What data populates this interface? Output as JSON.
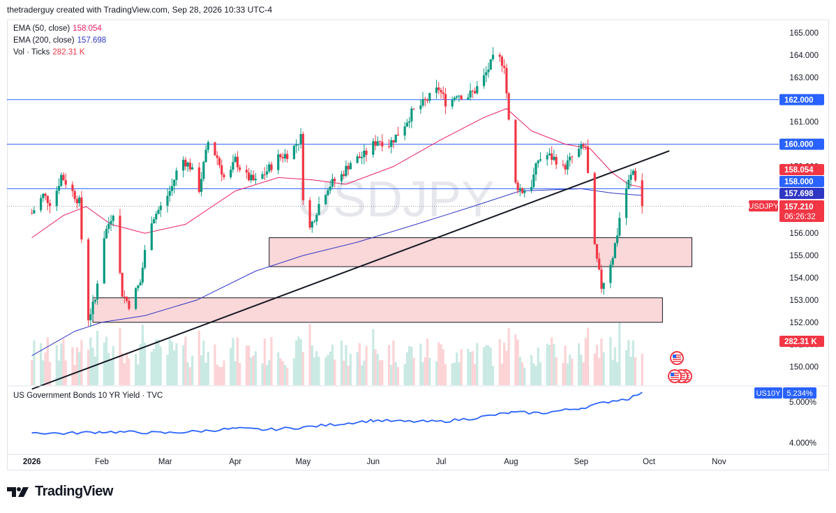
{
  "header": {
    "credit": "thetraderguy created with TradingView.com, Sep 28, 2026 10:33 UTC-4"
  },
  "watermark": "USDJPY",
  "legend": {
    "ema50": {
      "label": "EMA (50, close)",
      "value": "158.054",
      "color": "#e91e63"
    },
    "ema200": {
      "label": "EMA (200, close)",
      "value": "157.698",
      "color": "#2f36c4"
    },
    "vol": {
      "label": "Vol · Ticks",
      "value": "282.31 K",
      "color": "#f23645"
    }
  },
  "sub_legend": {
    "label": "US Government Bonds 10 YR Yield · TVC"
  },
  "footer": {
    "brand": "TradingView"
  },
  "price_labels": {
    "ema50": "158.054",
    "level_158": "158.000",
    "ema200": "157.698",
    "symbol": "USDJPY",
    "last": "157.210",
    "countdown": "06:26:32",
    "level_162": "162.000",
    "level_160": "160.000",
    "volume": "282.31 K",
    "yield_symbol": "US10Y",
    "yield_value": "5.234%"
  },
  "colors": {
    "up": "#089981",
    "down": "#f23645",
    "zone": "#f8c9cc",
    "level": "#2962ff",
    "yield": "#2962ff",
    "ema50": "#e91e63",
    "ema200": "#2f36c4"
  },
  "chart_data": [
    {
      "type": "candlestick",
      "title": "USDJPY",
      "yaxis_ticks": [
        "150.000",
        "151.000",
        "152.000",
        "153.000",
        "154.000",
        "155.000",
        "156.000",
        "157.000",
        "158.000",
        "159.000",
        "160.000",
        "161.000",
        "162.000",
        "163.000",
        "164.000",
        "165.000"
      ],
      "xaxis_ticks": [
        "2026",
        "Feb",
        "Mar",
        "Apr",
        "May",
        "Jun",
        "Jul",
        "Aug",
        "Sep",
        "Oct",
        "Nov"
      ],
      "ylim": [
        149.0,
        165.3
      ],
      "close_path": [
        [
          "2026-01-01",
          156.9
        ],
        [
          "2026-01-06",
          157.7
        ],
        [
          "2026-01-10",
          157.3
        ],
        [
          "2026-01-14",
          158.6
        ],
        [
          "2026-01-18",
          158.0
        ],
        [
          "2026-01-22",
          157.4
        ],
        [
          "2026-01-24",
          154.1
        ],
        [
          "2026-01-26",
          152.2
        ],
        [
          "2026-01-29",
          153.0
        ],
        [
          "2026-02-01",
          155.6
        ],
        [
          "2026-02-06",
          157.0
        ],
        [
          "2026-02-08",
          155.0
        ],
        [
          "2026-02-10",
          153.3
        ],
        [
          "2026-02-13",
          152.8
        ],
        [
          "2026-02-18",
          153.8
        ],
        [
          "2026-02-22",
          156.5
        ],
        [
          "2026-02-28",
          157.3
        ],
        [
          "2026-03-04",
          158.1
        ],
        [
          "2026-03-08",
          159.4
        ],
        [
          "2026-03-12",
          159.0
        ],
        [
          "2026-03-16",
          158.0
        ],
        [
          "2026-03-20",
          160.1
        ],
        [
          "2026-03-24",
          159.4
        ],
        [
          "2026-03-28",
          158.2
        ],
        [
          "2026-04-01",
          159.3
        ],
        [
          "2026-04-05",
          158.6
        ],
        [
          "2026-04-10",
          158.3
        ],
        [
          "2026-04-15",
          158.8
        ],
        [
          "2026-04-20",
          159.4
        ],
        [
          "2026-04-25",
          159.6
        ],
        [
          "2026-04-30",
          160.3
        ],
        [
          "2026-05-01",
          157.7
        ],
        [
          "2026-05-04",
          156.2
        ],
        [
          "2026-05-08",
          157.3
        ],
        [
          "2026-05-12",
          158.1
        ],
        [
          "2026-05-18",
          158.6
        ],
        [
          "2026-05-22",
          159.2
        ],
        [
          "2026-05-28",
          159.5
        ],
        [
          "2026-06-03",
          160.2
        ],
        [
          "2026-06-08",
          160.0
        ],
        [
          "2026-06-13",
          160.6
        ],
        [
          "2026-06-18",
          161.4
        ],
        [
          "2026-06-24",
          161.9
        ],
        [
          "2026-06-30",
          162.5
        ],
        [
          "2026-07-04",
          161.7
        ],
        [
          "2026-07-08",
          162.3
        ],
        [
          "2026-07-12",
          162.1
        ],
        [
          "2026-07-16",
          162.4
        ],
        [
          "2026-07-20",
          163.0
        ],
        [
          "2026-07-24",
          163.8
        ],
        [
          "2026-07-27",
          163.8
        ],
        [
          "2026-07-29",
          163.6
        ],
        [
          "2026-07-31",
          161.0
        ],
        [
          "2026-08-02",
          158.3
        ],
        [
          "2026-08-06",
          157.9
        ],
        [
          "2026-08-10",
          158.2
        ],
        [
          "2026-08-13",
          159.3
        ],
        [
          "2026-08-17",
          159.5
        ],
        [
          "2026-08-21",
          159.3
        ],
        [
          "2026-08-24",
          158.9
        ],
        [
          "2026-08-28",
          159.4
        ],
        [
          "2026-09-01",
          159.8
        ],
        [
          "2026-09-03",
          159.9
        ],
        [
          "2026-09-05",
          157.3
        ],
        [
          "2026-09-07",
          155.3
        ],
        [
          "2026-09-10",
          153.6
        ],
        [
          "2026-09-13",
          154.4
        ],
        [
          "2026-09-15",
          155.0
        ],
        [
          "2026-09-17",
          156.0
        ],
        [
          "2026-09-19",
          157.4
        ],
        [
          "2026-09-22",
          158.3
        ],
        [
          "2026-09-24",
          158.8
        ],
        [
          "2026-09-26",
          158.2
        ],
        [
          "2026-09-28",
          157.21
        ]
      ],
      "ema50": [
        [
          "2026-01-01",
          155.8
        ],
        [
          "2026-01-15",
          156.8
        ],
        [
          "2026-01-25",
          157.2
        ],
        [
          "2026-02-05",
          156.4
        ],
        [
          "2026-02-20",
          156.0
        ],
        [
          "2026-03-10",
          156.4
        ],
        [
          "2026-04-01",
          157.9
        ],
        [
          "2026-04-20",
          158.5
        ],
        [
          "2026-05-05",
          158.4
        ],
        [
          "2026-05-20",
          158.2
        ],
        [
          "2026-06-10",
          159.0
        ],
        [
          "2026-07-01",
          160.2
        ],
        [
          "2026-07-20",
          161.2
        ],
        [
          "2026-07-30",
          161.6
        ],
        [
          "2026-08-10",
          160.6
        ],
        [
          "2026-08-25",
          160.0
        ],
        [
          "2026-09-05",
          159.8
        ],
        [
          "2026-09-15",
          158.7
        ],
        [
          "2026-09-22",
          158.2
        ],
        [
          "2026-09-28",
          158.054
        ]
      ],
      "ema200": [
        [
          "2026-01-01",
          150.5
        ],
        [
          "2026-01-20",
          151.6
        ],
        [
          "2026-02-01",
          152.0
        ],
        [
          "2026-02-20",
          152.3
        ],
        [
          "2026-03-15",
          153.0
        ],
        [
          "2026-04-10",
          154.3
        ],
        [
          "2026-05-01",
          155.0
        ],
        [
          "2026-05-25",
          155.6
        ],
        [
          "2026-06-20",
          156.4
        ],
        [
          "2026-07-15",
          157.2
        ],
        [
          "2026-08-05",
          157.9
        ],
        [
          "2026-09-01",
          158.0
        ],
        [
          "2026-09-15",
          157.8
        ],
        [
          "2026-09-28",
          157.698
        ]
      ],
      "levels": [
        162.0,
        160.0,
        158.0
      ],
      "zones": [
        {
          "from": "2026-04-16",
          "to": "2026-10-20",
          "low": 154.5,
          "high": 155.8
        },
        {
          "from": "2026-01-28",
          "to": "2026-10-07",
          "low": 152.0,
          "high": 153.1
        }
      ],
      "trendline": [
        [
          "2026-01-01",
          149.0
        ],
        [
          "2026-10-10",
          159.7
        ]
      ],
      "last_price": 157.21,
      "volume_last": "282.31 K"
    },
    {
      "type": "line",
      "title": "US Government Bonds 10 YR Yield · TVC",
      "yaxis_ticks": [
        "4.000%",
        "5.000%"
      ],
      "ylim": [
        3.6,
        5.4
      ],
      "series": [
        {
          "name": "US10Y",
          "points": [
            [
              "2026-01-01",
              4.25
            ],
            [
              "2026-01-15",
              4.23
            ],
            [
              "2026-02-01",
              4.27
            ],
            [
              "2026-02-15",
              4.26
            ],
            [
              "2026-03-01",
              4.24
            ],
            [
              "2026-03-15",
              4.28
            ],
            [
              "2026-04-01",
              4.35
            ],
            [
              "2026-04-15",
              4.32
            ],
            [
              "2026-05-01",
              4.38
            ],
            [
              "2026-05-15",
              4.45
            ],
            [
              "2026-06-01",
              4.55
            ],
            [
              "2026-06-15",
              4.52
            ],
            [
              "2026-07-01",
              4.52
            ],
            [
              "2026-07-15",
              4.6
            ],
            [
              "2026-08-01",
              4.74
            ],
            [
              "2026-08-15",
              4.73
            ],
            [
              "2026-09-01",
              4.85
            ],
            [
              "2026-09-15",
              5.03
            ],
            [
              "2026-09-22",
              5.08
            ],
            [
              "2026-09-28",
              5.234
            ]
          ]
        }
      ]
    }
  ]
}
